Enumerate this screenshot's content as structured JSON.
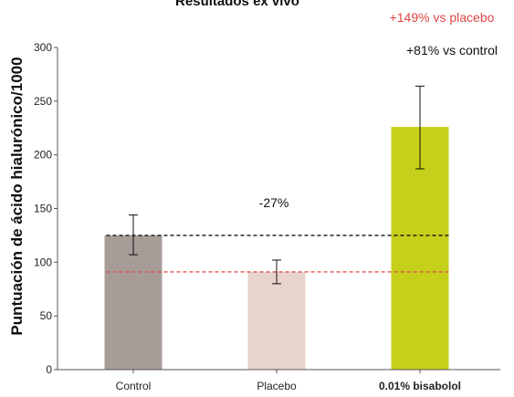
{
  "chart_data": {
    "type": "bar",
    "title": "Resultados ex vivo",
    "ylabel": "Puntuación de ácido hialurónico/1000",
    "xlabel": "",
    "ylim": [
      0,
      300
    ],
    "yticks": [
      0,
      50,
      100,
      150,
      200,
      250,
      300
    ],
    "grid": false,
    "categories": [
      "Control",
      "Placebo",
      "0.01% bisabolol"
    ],
    "values": [
      125,
      91,
      226
    ],
    "error_low": [
      107,
      80,
      187
    ],
    "error_high": [
      144,
      102,
      264
    ],
    "colors": [
      "#a89c99",
      "#e8d3cd",
      "#c6d01a"
    ],
    "reference_lines": [
      {
        "value": 125,
        "color": "#111111",
        "style": "dashed"
      },
      {
        "value": 91,
        "color": "#e05050",
        "style": "dashed"
      }
    ],
    "annotations": [
      {
        "text": "+149% vs placebo",
        "color": "#e04545"
      },
      {
        "text": "+81% vs control",
        "color": "#111111"
      },
      {
        "text": "-27%",
        "color": "#111111"
      }
    ]
  }
}
